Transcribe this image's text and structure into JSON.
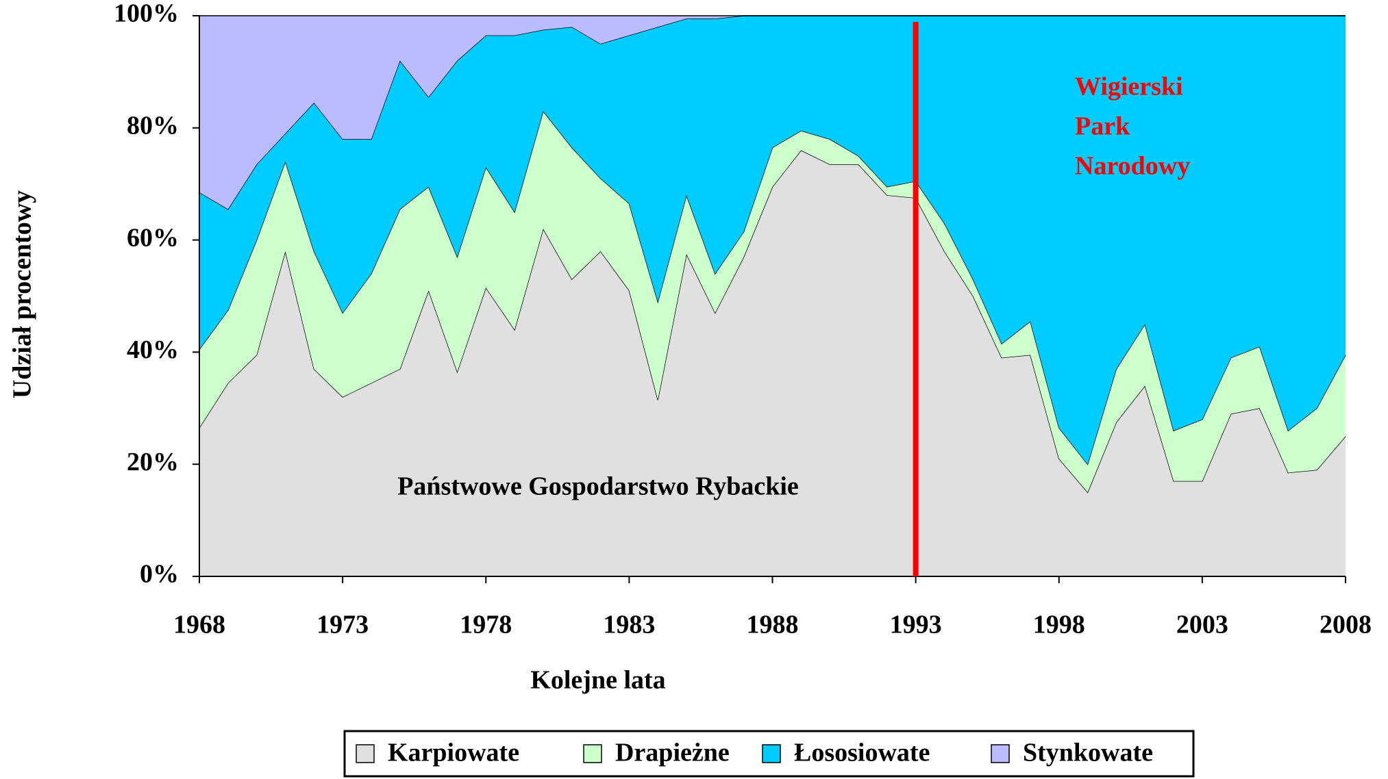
{
  "chart_data": {
    "type": "stacked_area",
    "xlabel": "Kolejne lata",
    "ylabel": "Udział procentowy",
    "x": [
      1968,
      1969,
      1970,
      1971,
      1972,
      1973,
      1974,
      1975,
      1976,
      1977,
      1978,
      1979,
      1980,
      1981,
      1982,
      1983,
      1984,
      1985,
      1986,
      1987,
      1988,
      1989,
      1990,
      1991,
      1992,
      1993,
      1994,
      1995,
      1996,
      1997,
      1998,
      1999,
      2000,
      2001,
      2002,
      2003,
      2004,
      2005,
      2006,
      2007,
      2008
    ],
    "series": [
      {
        "name": "Karpiowate",
        "color": "#e0e0e0",
        "values": [
          26.5,
          34.5,
          39.5,
          58,
          37,
          32,
          34.5,
          37,
          51,
          36.5,
          51.5,
          44,
          62,
          53,
          58,
          51,
          31.5,
          57.5,
          47,
          57,
          69.5,
          76,
          73.5,
          73.5,
          68,
          67.5,
          58,
          50,
          39,
          39.5,
          21,
          15,
          27.5,
          34,
          17,
          17,
          29,
          30,
          18.5,
          19,
          25
        ]
      },
      {
        "name": "Drapieżne",
        "color": "#ccffcc",
        "values": [
          14,
          13,
          20.5,
          16,
          21,
          15,
          19.5,
          28.5,
          18.5,
          20.5,
          21.5,
          21,
          21,
          23.5,
          13,
          15.5,
          17.5,
          10.5,
          7,
          4.5,
          7,
          3.5,
          4.5,
          1.5,
          1.5,
          3,
          5,
          3,
          2.5,
          6,
          5.5,
          5,
          9.5,
          11,
          9,
          11,
          10,
          11,
          7.5,
          11,
          14.5
        ]
      },
      {
        "name": "Łososiowate",
        "color": "#00ccff",
        "values": [
          28,
          18,
          13.5,
          5,
          26.5,
          31,
          24,
          26.5,
          16,
          35,
          23.5,
          31.5,
          14.5,
          21.5,
          24,
          30,
          49,
          31.5,
          45.5,
          38.5,
          23.5,
          20.5,
          22,
          25,
          30.5,
          29.5,
          37,
          47,
          58.5,
          54.5,
          73.5,
          80,
          63,
          55,
          74,
          72,
          61,
          59,
          74,
          70,
          60.5
        ]
      },
      {
        "name": "Stynkowate",
        "color": "#bbbbff",
        "values": [
          31.5,
          34.5,
          26.5,
          21,
          15.5,
          22,
          22,
          8,
          14.5,
          8,
          3.5,
          3.5,
          2.5,
          2,
          5,
          3.5,
          2,
          0.5,
          0.5,
          0,
          0,
          0,
          0,
          0,
          0,
          0,
          0,
          0,
          0,
          0,
          0,
          0,
          0,
          0,
          0,
          0,
          0,
          0,
          0,
          0,
          0
        ]
      }
    ],
    "xlim": [
      1968,
      2008
    ],
    "xticks": [
      1968,
      1973,
      1978,
      1983,
      1988,
      1993,
      1998,
      2003,
      2008
    ],
    "ylim": [
      0,
      100
    ],
    "yticks": [
      {
        "value": 0,
        "label": "0%"
      },
      {
        "value": 20,
        "label": "20%"
      },
      {
        "value": 40,
        "label": "40%"
      },
      {
        "value": 60,
        "label": "60%"
      },
      {
        "value": 80,
        "label": "80%"
      },
      {
        "value": 100,
        "label": "100%"
      }
    ],
    "annotations": [
      {
        "text": [
          "Państwowe Gospodarstwo Rybackie"
        ],
        "color": "#000000"
      },
      {
        "text": [
          "Wigierski",
          "Park",
          "Narodowy"
        ],
        "color": "#ff0000"
      }
    ],
    "vline": {
      "x": 1993,
      "color": "#ff0000"
    },
    "legend": "bottom"
  }
}
